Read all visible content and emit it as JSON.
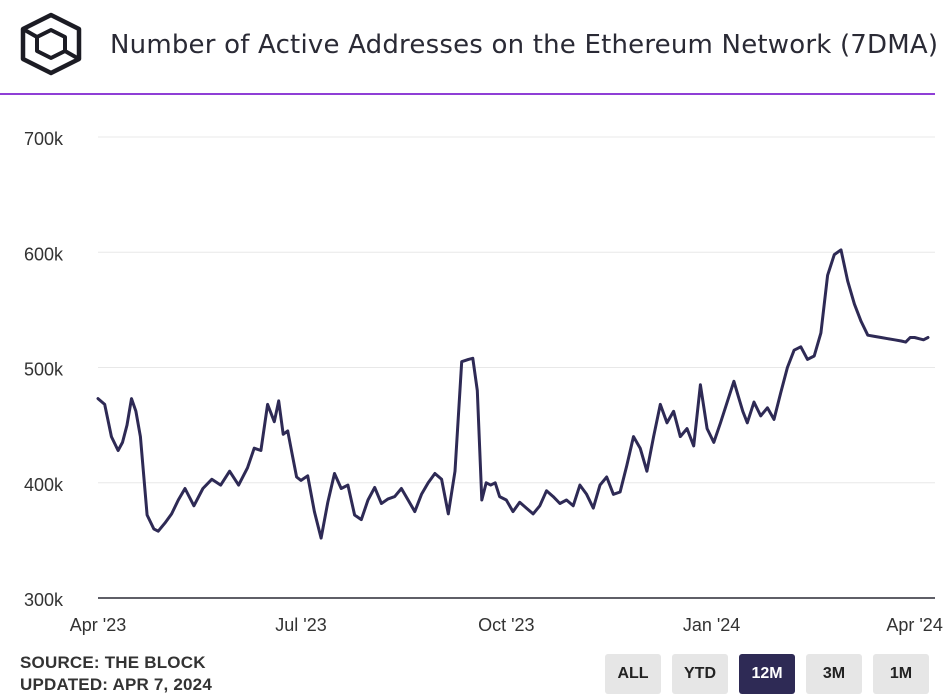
{
  "header": {
    "title": "Number of Active Addresses on the Ethereum Network (7DMA)"
  },
  "footer": {
    "source": "SOURCE: THE BLOCK",
    "updated": "UPDATED: APR 7, 2024"
  },
  "range_buttons": [
    {
      "label": "ALL",
      "active": false
    },
    {
      "label": "YTD",
      "active": false
    },
    {
      "label": "12M",
      "active": true
    },
    {
      "label": "3M",
      "active": false
    },
    {
      "label": "1M",
      "active": false
    }
  ],
  "colors": {
    "line": "#2e2a55",
    "accent_rule": "#8f3fd6",
    "grid": "#e8e8e8",
    "active_button": "#2e2a55",
    "button": "#e6e6e6"
  },
  "chart_data": {
    "type": "line",
    "title": "Number of Active Addresses on the Ethereum Network (7DMA)",
    "xlabel": "",
    "ylabel": "",
    "ylim": [
      300000,
      700000
    ],
    "yticks": [
      300000,
      400000,
      500000,
      600000,
      700000
    ],
    "ytick_labels": [
      "300k",
      "400k",
      "500k",
      "600k",
      "700k"
    ],
    "xlim": [
      "2023-04-01",
      "2024-04-07"
    ],
    "xticks": [
      "2023-04-01",
      "2023-07-01",
      "2023-10-01",
      "2024-01-01",
      "2024-04-01"
    ],
    "xtick_labels": [
      "Apr '23",
      "Jul '23",
      "Oct '23",
      "Jan '24",
      "Apr '24"
    ],
    "grid": "horizontal",
    "series": [
      {
        "name": "",
        "x": [
          "2023-04-01",
          "2023-04-04",
          "2023-04-07",
          "2023-04-10",
          "2023-04-12",
          "2023-04-14",
          "2023-04-16",
          "2023-04-18",
          "2023-04-20",
          "2023-04-23",
          "2023-04-26",
          "2023-04-28",
          "2023-05-01",
          "2023-05-04",
          "2023-05-07",
          "2023-05-10",
          "2023-05-14",
          "2023-05-18",
          "2023-05-22",
          "2023-05-26",
          "2023-05-30",
          "2023-06-03",
          "2023-06-07",
          "2023-06-10",
          "2023-06-13",
          "2023-06-16",
          "2023-06-19",
          "2023-06-21",
          "2023-06-23",
          "2023-06-25",
          "2023-06-27",
          "2023-06-29",
          "2023-07-01",
          "2023-07-04",
          "2023-07-07",
          "2023-07-10",
          "2023-07-13",
          "2023-07-16",
          "2023-07-19",
          "2023-07-22",
          "2023-07-25",
          "2023-07-28",
          "2023-07-31",
          "2023-08-03",
          "2023-08-06",
          "2023-08-09",
          "2023-08-12",
          "2023-08-15",
          "2023-08-18",
          "2023-08-21",
          "2023-08-24",
          "2023-08-27",
          "2023-08-30",
          "2023-09-02",
          "2023-09-05",
          "2023-09-08",
          "2023-09-11",
          "2023-09-14",
          "2023-09-16",
          "2023-09-18",
          "2023-09-20",
          "2023-09-22",
          "2023-09-24",
          "2023-09-26",
          "2023-09-28",
          "2023-10-01",
          "2023-10-04",
          "2023-10-07",
          "2023-10-10",
          "2023-10-13",
          "2023-10-16",
          "2023-10-19",
          "2023-10-22",
          "2023-10-25",
          "2023-10-28",
          "2023-10-31",
          "2023-11-03",
          "2023-11-06",
          "2023-11-09",
          "2023-11-12",
          "2023-11-15",
          "2023-11-18",
          "2023-11-21",
          "2023-11-24",
          "2023-11-27",
          "2023-11-30",
          "2023-12-03",
          "2023-12-06",
          "2023-12-09",
          "2023-12-12",
          "2023-12-15",
          "2023-12-18",
          "2023-12-21",
          "2023-12-24",
          "2023-12-27",
          "2023-12-30",
          "2024-01-02",
          "2024-01-05",
          "2024-01-08",
          "2024-01-11",
          "2024-01-13",
          "2024-01-15",
          "2024-01-17",
          "2024-01-20",
          "2024-01-23",
          "2024-01-26",
          "2024-01-29",
          "2024-02-01",
          "2024-02-04",
          "2024-02-07",
          "2024-02-10",
          "2024-02-13",
          "2024-02-16",
          "2024-02-19",
          "2024-02-22",
          "2024-02-25",
          "2024-02-28",
          "2024-03-02",
          "2024-03-05",
          "2024-03-08",
          "2024-03-11",
          "2024-03-14",
          "2024-03-17",
          "2024-03-20",
          "2024-03-23",
          "2024-03-26",
          "2024-03-28",
          "2024-03-30",
          "2024-04-01",
          "2024-04-03",
          "2024-04-05",
          "2024-04-07"
        ],
        "y": [
          473000,
          468000,
          440000,
          428000,
          435000,
          450000,
          473000,
          462000,
          440000,
          372000,
          360000,
          358000,
          365000,
          373000,
          385000,
          395000,
          380000,
          395000,
          403000,
          398000,
          410000,
          398000,
          413000,
          430000,
          428000,
          468000,
          453000,
          471000,
          442000,
          445000,
          425000,
          405000,
          402000,
          406000,
          375000,
          352000,
          383000,
          408000,
          395000,
          398000,
          372000,
          368000,
          385000,
          396000,
          382000,
          386000,
          388000,
          395000,
          385000,
          375000,
          390000,
          400000,
          408000,
          403000,
          373000,
          410000,
          505000,
          507000,
          508000,
          480000,
          385000,
          400000,
          398000,
          400000,
          388000,
          385000,
          375000,
          383000,
          378000,
          373000,
          380000,
          393000,
          388000,
          382000,
          385000,
          380000,
          398000,
          390000,
          378000,
          398000,
          405000,
          390000,
          392000,
          415000,
          440000,
          430000,
          410000,
          440000,
          468000,
          452000,
          462000,
          440000,
          447000,
          432000,
          485000,
          447000,
          435000,
          452000,
          470000,
          488000,
          475000,
          462000,
          452000,
          470000,
          458000,
          465000,
          455000,
          478000,
          500000,
          515000,
          518000,
          507000,
          510000,
          530000,
          580000,
          598000,
          602000,
          575000,
          555000,
          540000,
          528000,
          527000,
          526000,
          525000,
          524000,
          523000,
          522000,
          526000,
          526000,
          525000,
          524000,
          526000
        ]
      }
    ]
  }
}
